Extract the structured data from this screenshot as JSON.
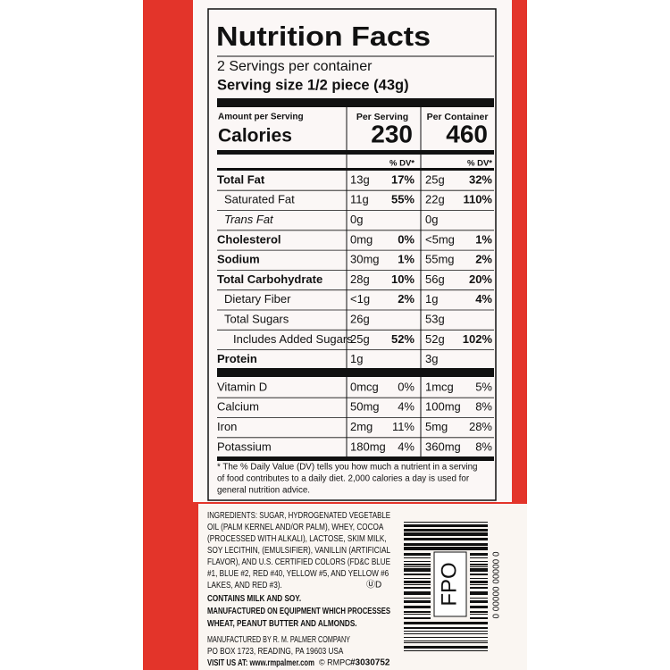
{
  "header": {
    "title": "Nutrition Facts",
    "servings": "2 Servings per container",
    "serving_size": "Serving size 1/2 piece (43g)"
  },
  "calories": {
    "amount_label": "Amount per Serving",
    "label": "Calories",
    "per_serving_header": "Per Serving",
    "per_container_header": "Per Container",
    "per_serving": "230",
    "per_container": "460"
  },
  "dv_header": "% DV*",
  "nutrients": [
    {
      "name": "Total Fat",
      "serving": "13g",
      "serving_dv": "17%",
      "container": "25g",
      "container_dv": "32%"
    },
    {
      "name": "Saturated Fat",
      "serving": "11g",
      "serving_dv": "55%",
      "container": "22g",
      "container_dv": "110%"
    },
    {
      "name": "Trans Fat",
      "serving": "0g",
      "serving_dv": null,
      "container": "0g",
      "container_dv": null
    },
    {
      "name": "Cholesterol",
      "serving": "0mg",
      "serving_dv": "0%",
      "container": "<5mg",
      "container_dv": "1%"
    },
    {
      "name": "Sodium",
      "serving": "30mg",
      "serving_dv": "1%",
      "container": "55mg",
      "container_dv": "2%"
    },
    {
      "name": "Total Carbohydrate",
      "serving": "28g",
      "serving_dv": "10%",
      "container": "56g",
      "container_dv": "20%"
    },
    {
      "name": "Dietary Fiber",
      "serving": "<1g",
      "serving_dv": "2%",
      "container": "1g",
      "container_dv": "4%"
    },
    {
      "name": "Total Sugars",
      "serving": "26g",
      "serving_dv": null,
      "container": "53g",
      "container_dv": null
    },
    {
      "name": "Includes Added Sugars",
      "serving": "25g",
      "serving_dv": "52%",
      "container": "52g",
      "container_dv": "102%"
    },
    {
      "name": "Protein",
      "serving": "1g",
      "serving_dv": null,
      "container": "3g",
      "container_dv": null
    }
  ],
  "vitamins": [
    {
      "name": "Vitamin D",
      "serving": "0mcg",
      "serving_dv": "0%",
      "container": "1mcg",
      "container_dv": "5%"
    },
    {
      "name": "Calcium",
      "serving": "50mg",
      "serving_dv": "4%",
      "container": "100mg",
      "container_dv": "8%"
    },
    {
      "name": "Iron",
      "serving": "2mg",
      "serving_dv": "11%",
      "container": "5mg",
      "container_dv": "28%"
    },
    {
      "name": "Potassium",
      "serving": "180mg",
      "serving_dv": "4%",
      "container": "360mg",
      "container_dv": "8%"
    }
  ],
  "footnote": [
    "* The % Daily Value (DV) tells you how much a nutrient in a serving",
    "of food contributes to a daily diet. 2,000 calories a day is used for",
    "general nutrition advice."
  ],
  "ingredients": [
    "INGREDIENTS: SUGAR, HYDROGENATED VEGETABLE",
    "OIL (PALM KERNEL AND/OR PALM), WHEY, COCOA",
    "(PROCESSED WITH ALKALI), LACTOSE, SKIM MILK,",
    "SOY LECITHIN, (EMULSIFIER), VANILLIN (ARTIFICIAL",
    "FLAVOR), AND U.S. CERTIFIED COLORS (FD&C BLUE",
    "#1, BLUE #2, RED #40, YELLOW #5, AND YELLOW #6",
    "LAKES, AND RED #3)."
  ],
  "kosher": "ⓊD",
  "allergens": [
    "CONTAINS MILK AND SOY.",
    "MANUFACTURED ON EQUIPMENT WHICH PROCESSES",
    "WHEAT, PEANUT BUTTER AND ALMONDS."
  ],
  "manufacturer": [
    "MANUFACTURED BY R. M. PALMER COMPANY",
    "PO BOX 1723, READING, PA 19603  USA"
  ],
  "visit": "VISIT US AT: www.rmpalmer.com",
  "copyright": "© RMPC",
  "code": "#3030752",
  "barcode_label": "FPO",
  "barcode_digits": "0 00000 00000 0"
}
